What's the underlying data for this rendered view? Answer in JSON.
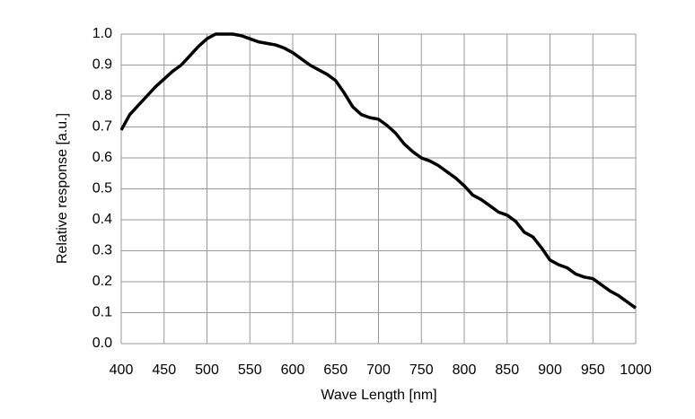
{
  "chart_data": {
    "type": "line",
    "x_label": "Wave Length [nm]",
    "y_label": "Relative response [a.u.]",
    "x": [
      400,
      410,
      420,
      430,
      440,
      450,
      460,
      470,
      480,
      490,
      500,
      510,
      520,
      530,
      540,
      550,
      560,
      570,
      580,
      590,
      600,
      610,
      620,
      630,
      640,
      650,
      660,
      670,
      680,
      690,
      700,
      710,
      720,
      730,
      740,
      750,
      760,
      770,
      780,
      790,
      800,
      810,
      820,
      830,
      840,
      850,
      860,
      870,
      880,
      890,
      900,
      910,
      920,
      930,
      940,
      950,
      960,
      970,
      980,
      990,
      1000
    ],
    "series": [
      {
        "color": "#000000",
        "values": [
          0.69,
          0.74,
          0.77,
          0.8,
          0.83,
          0.855,
          0.88,
          0.9,
          0.93,
          0.96,
          0.985,
          1.0,
          1.0,
          1.0,
          0.995,
          0.985,
          0.975,
          0.97,
          0.965,
          0.955,
          0.94,
          0.92,
          0.9,
          0.885,
          0.87,
          0.85,
          0.81,
          0.765,
          0.74,
          0.73,
          0.725,
          0.705,
          0.68,
          0.645,
          0.62,
          0.6,
          0.59,
          0.575,
          0.555,
          0.535,
          0.51,
          0.48,
          0.465,
          0.445,
          0.425,
          0.415,
          0.395,
          0.36,
          0.345,
          0.31,
          0.27,
          0.255,
          0.245,
          0.225,
          0.215,
          0.21,
          0.19,
          0.17,
          0.155,
          0.135,
          0.115
        ]
      }
    ],
    "xlim": [
      400,
      1000
    ],
    "xticks": [
      400,
      450,
      500,
      550,
      600,
      650,
      700,
      750,
      800,
      850,
      900,
      950,
      1000
    ],
    "ylim": [
      0,
      1
    ],
    "yticks": [
      {
        "value": 0,
        "label": "0.0"
      },
      0.1,
      0.2,
      0.3,
      0.4,
      0.5,
      0.6,
      0.7,
      0.8,
      0.9,
      {
        "value": 1,
        "label": "1.0"
      }
    ],
    "grid": true
  }
}
